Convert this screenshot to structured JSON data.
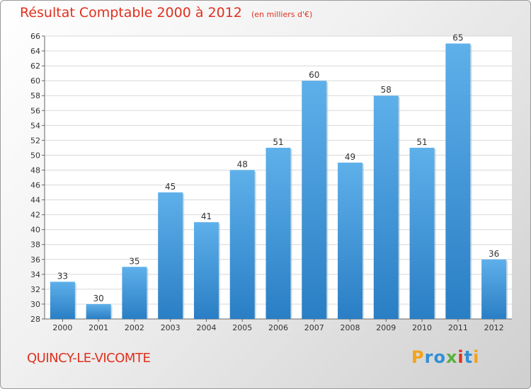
{
  "header": {
    "title": "Résultat Comptable 2000 à 2012",
    "unit": "(en milliers d'€)"
  },
  "footer": {
    "commune": "QUINCY-LE-VICOMTE",
    "logo_text": "Proxiti"
  },
  "colors": {
    "title": "#e0301e",
    "bar_top": "#5eb0ea",
    "bar_bottom": "#2a7ec4"
  },
  "chart_data": {
    "type": "bar",
    "title": "Résultat Comptable 2000 à 2012",
    "subtitle": "(en milliers d'€)",
    "categories": [
      "2000",
      "2001",
      "2002",
      "2003",
      "2004",
      "2005",
      "2006",
      "2007",
      "2008",
      "2009",
      "2010",
      "2011",
      "2012"
    ],
    "values": [
      33,
      30,
      35,
      45,
      41,
      48,
      51,
      60,
      49,
      58,
      51,
      65,
      36
    ],
    "xlabel": "",
    "ylabel": "",
    "ylim": [
      28,
      66
    ],
    "yticks": [
      28,
      30,
      32,
      34,
      36,
      38,
      40,
      42,
      44,
      46,
      48,
      50,
      52,
      54,
      56,
      58,
      60,
      62,
      64,
      66
    ],
    "grid": true,
    "legend": "none"
  }
}
